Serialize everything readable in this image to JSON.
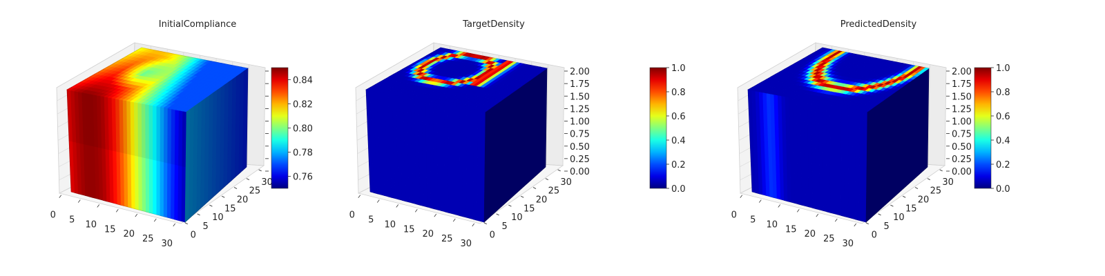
{
  "colors": {
    "background": "#ffffff",
    "pane": "#f2f2f2",
    "grid": "#d8d8d8",
    "axis": "#222222"
  },
  "chart_data": [
    {
      "type": "voxel-3d",
      "title": "InitialCompliance",
      "colormap": "jet",
      "clim": [
        0.75,
        0.85
      ],
      "colorbar_ticks": [
        "0.76",
        "0.78",
        "0.80",
        "0.82",
        "0.84"
      ],
      "x_ticks": [
        "0",
        "5",
        "10",
        "15",
        "20",
        "25",
        "30"
      ],
      "y_ticks": [
        "0",
        "5",
        "10",
        "15",
        "20",
        "25",
        "30"
      ],
      "xlim": [
        0,
        32
      ],
      "ylim": [
        0,
        32
      ],
      "zlim": [
        0,
        2
      ],
      "front_face_profile": [
        0.84,
        0.845,
        0.848,
        0.848,
        0.846,
        0.84,
        0.832,
        0.822,
        0.81,
        0.8,
        0.79,
        0.78,
        0.77,
        0.762,
        0.755
      ],
      "top_face_value_range": [
        0.77,
        0.85
      ],
      "side_face_value_range": [
        0.75,
        0.78
      ]
    },
    {
      "type": "voxel-3d",
      "title": "TargetDensity",
      "colormap": "jet",
      "clim": [
        0,
        1
      ],
      "colorbar_ticks": [
        "0.0",
        "0.2",
        "0.4",
        "0.6",
        "0.8",
        "1.0"
      ],
      "x_ticks": [
        "0",
        "5",
        "10",
        "15",
        "20",
        "25",
        "30"
      ],
      "y_ticks": [
        "0",
        "5",
        "10",
        "15",
        "20",
        "25",
        "30"
      ],
      "z_ticks": [
        "0.00",
        "0.25",
        "0.50",
        "0.75",
        "1.00",
        "1.25",
        "1.50",
        "1.75",
        "2.00"
      ],
      "xlim": [
        0,
        32
      ],
      "ylim": [
        0,
        32
      ],
      "zlim": [
        0,
        2
      ],
      "top_face_feature": "ring",
      "background_value": 0.05
    },
    {
      "type": "voxel-3d",
      "title": "PredictedDensity",
      "colormap": "jet",
      "clim": [
        0,
        1
      ],
      "colorbar_ticks": [
        "0.0",
        "0.2",
        "0.4",
        "0.6",
        "0.8",
        "1.0"
      ],
      "x_ticks": [
        "0",
        "5",
        "10",
        "15",
        "20",
        "25",
        "30"
      ],
      "y_ticks": [
        "0",
        "5",
        "10",
        "15",
        "20",
        "25",
        "30"
      ],
      "z_ticks": [
        "0.00",
        "0.25",
        "0.50",
        "0.75",
        "1.00",
        "1.25",
        "1.50",
        "1.75",
        "2.00"
      ],
      "xlim": [
        0,
        32
      ],
      "ylim": [
        0,
        32
      ],
      "zlim": [
        0,
        2
      ],
      "top_face_feature": "u-shape",
      "background_value": 0.05
    }
  ]
}
